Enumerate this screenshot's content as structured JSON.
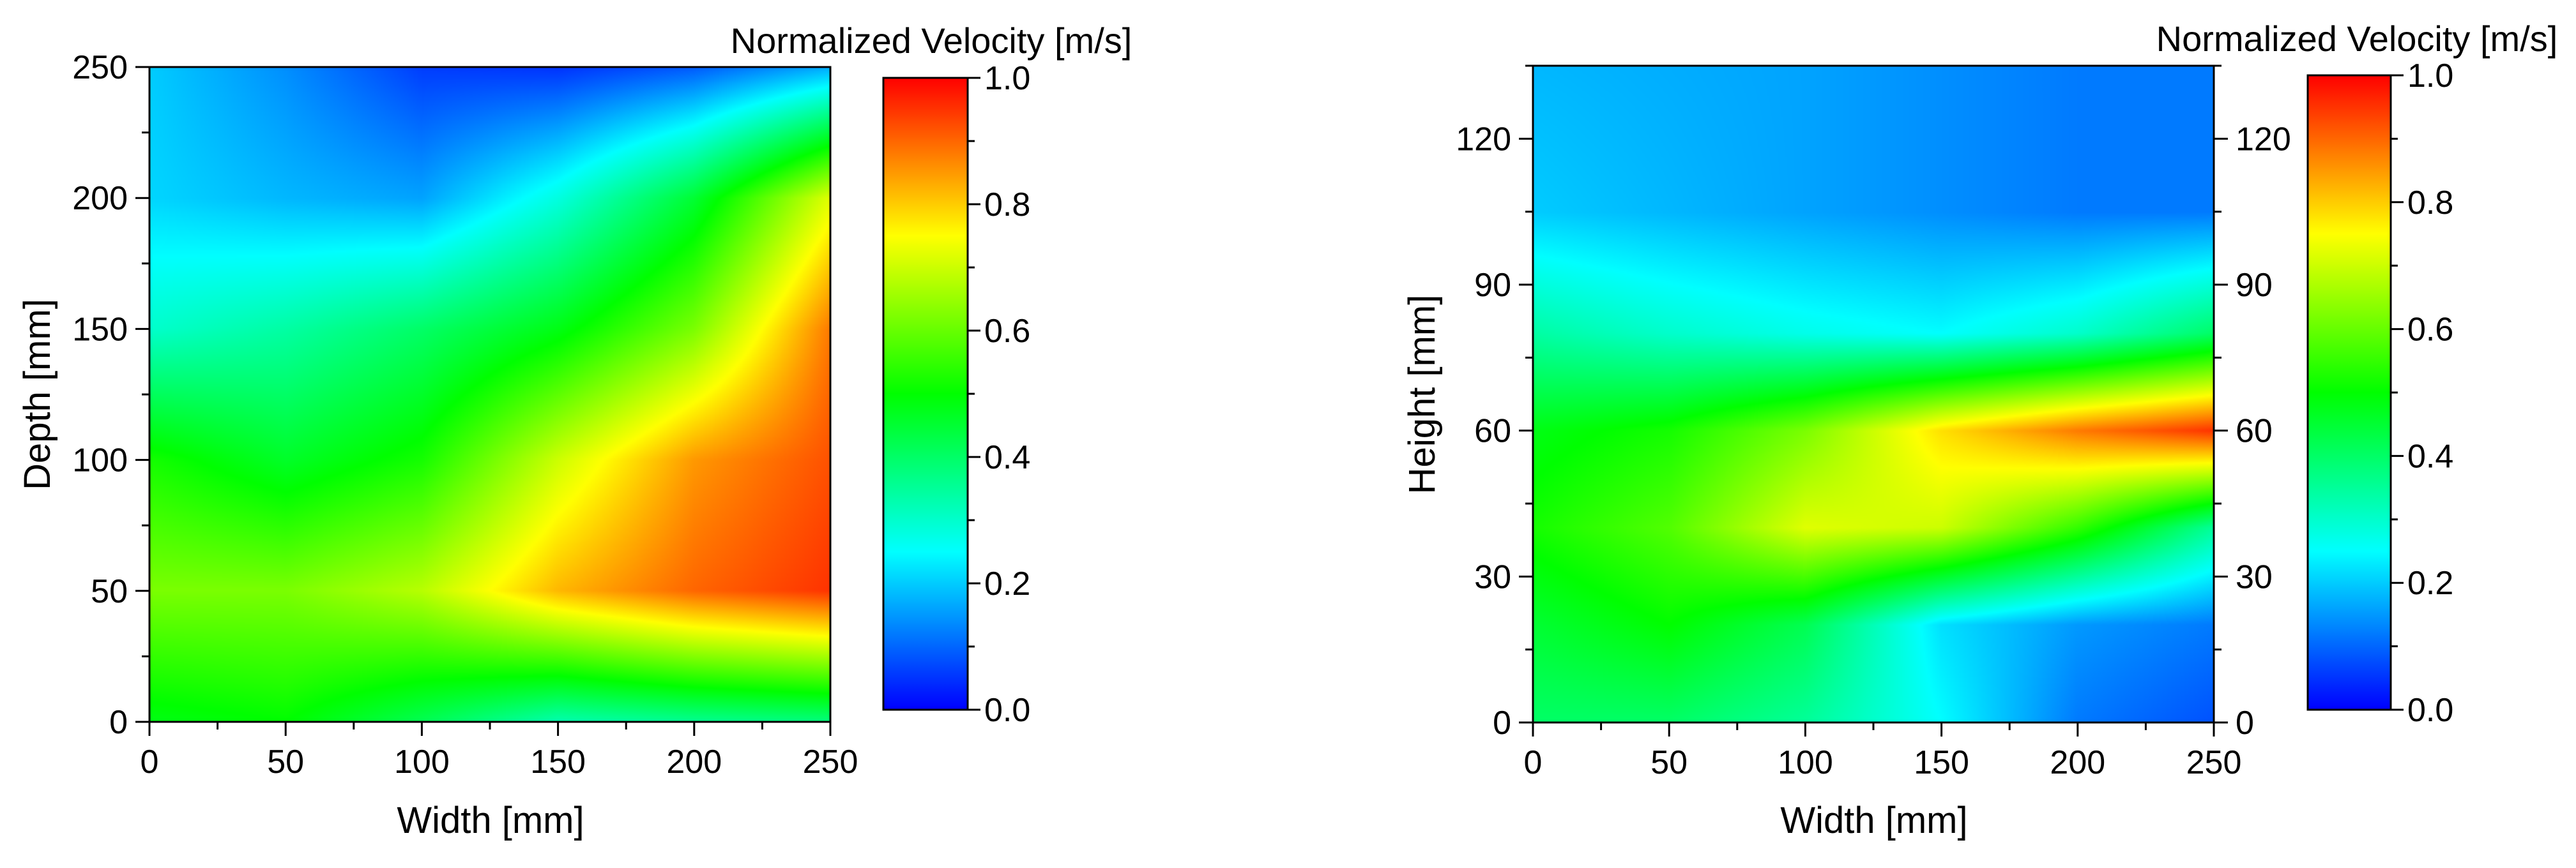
{
  "chart_data": [
    {
      "type": "heatmap",
      "title": "",
      "xlabel": "Width [mm]",
      "ylabel": "Depth [mm]",
      "xlim": [
        0,
        250
      ],
      "ylim": [
        0,
        250
      ],
      "x_ticks": [
        "0",
        "50",
        "100",
        "150",
        "200",
        "250"
      ],
      "y_ticks": [
        "0",
        "50",
        "100",
        "150",
        "200",
        "250"
      ],
      "colorbar": {
        "label": "Normalized Velocity [m/s]",
        "range": [
          0.0,
          1.0
        ],
        "ticks": [
          "0.0",
          "0.2",
          "0.4",
          "0.6",
          "0.8",
          "1.0"
        ],
        "colormap": [
          "#0000ff",
          "#00ffff",
          "#00ff00",
          "#ffff00",
          "#ff0000"
        ]
      },
      "field": {
        "x": [
          0,
          50,
          100,
          150,
          200,
          250
        ],
        "y": [
          250,
          200,
          150,
          100,
          50,
          0
        ],
        "values": [
          [
            0.2,
            0.14,
            0.06,
            0.05,
            0.09,
            0.17
          ],
          [
            0.21,
            0.18,
            0.16,
            0.28,
            0.45,
            0.72
          ],
          [
            0.3,
            0.34,
            0.4,
            0.48,
            0.62,
            0.88
          ],
          [
            0.52,
            0.46,
            0.52,
            0.7,
            0.85,
            0.92
          ],
          [
            0.62,
            0.62,
            0.68,
            0.82,
            0.9,
            0.95
          ],
          [
            0.48,
            0.5,
            0.42,
            0.33,
            0.36,
            0.38
          ]
        ]
      }
    },
    {
      "type": "heatmap",
      "title": "",
      "xlabel": "Width [mm]",
      "ylabel": "Height [mm]",
      "xlim": [
        0,
        250
      ],
      "ylim": [
        0,
        135
      ],
      "x_ticks": [
        "0",
        "50",
        "100",
        "150",
        "200",
        "250"
      ],
      "y_ticks": [
        "0",
        "30",
        "60",
        "90",
        "120"
      ],
      "right_axis_ticks": [
        "0",
        "30",
        "60",
        "90",
        "120"
      ],
      "colorbar": {
        "label": "Normalized Velocity [m/s]",
        "range": [
          0.0,
          1.0
        ],
        "ticks": [
          "0.0",
          "0.2",
          "0.4",
          "0.6",
          "0.8",
          "1.0"
        ],
        "colormap": [
          "#0000ff",
          "#00ffff",
          "#00ff00",
          "#ffff00",
          "#ff0000"
        ]
      },
      "field": {
        "x": [
          0,
          50,
          100,
          150,
          200,
          250
        ],
        "y": [
          135,
          105,
          80,
          60,
          40,
          20,
          0
        ],
        "values": [
          [
            0.18,
            0.17,
            0.16,
            0.14,
            0.12,
            0.12
          ],
          [
            0.2,
            0.18,
            0.16,
            0.14,
            0.12,
            0.12
          ],
          [
            0.34,
            0.3,
            0.27,
            0.25,
            0.3,
            0.4
          ],
          [
            0.48,
            0.52,
            0.62,
            0.78,
            0.88,
            0.95
          ],
          [
            0.52,
            0.58,
            0.72,
            0.7,
            0.55,
            0.35
          ],
          [
            0.45,
            0.5,
            0.42,
            0.22,
            0.15,
            0.12
          ],
          [
            0.4,
            0.4,
            0.35,
            0.25,
            0.12,
            0.08
          ]
        ]
      }
    }
  ]
}
